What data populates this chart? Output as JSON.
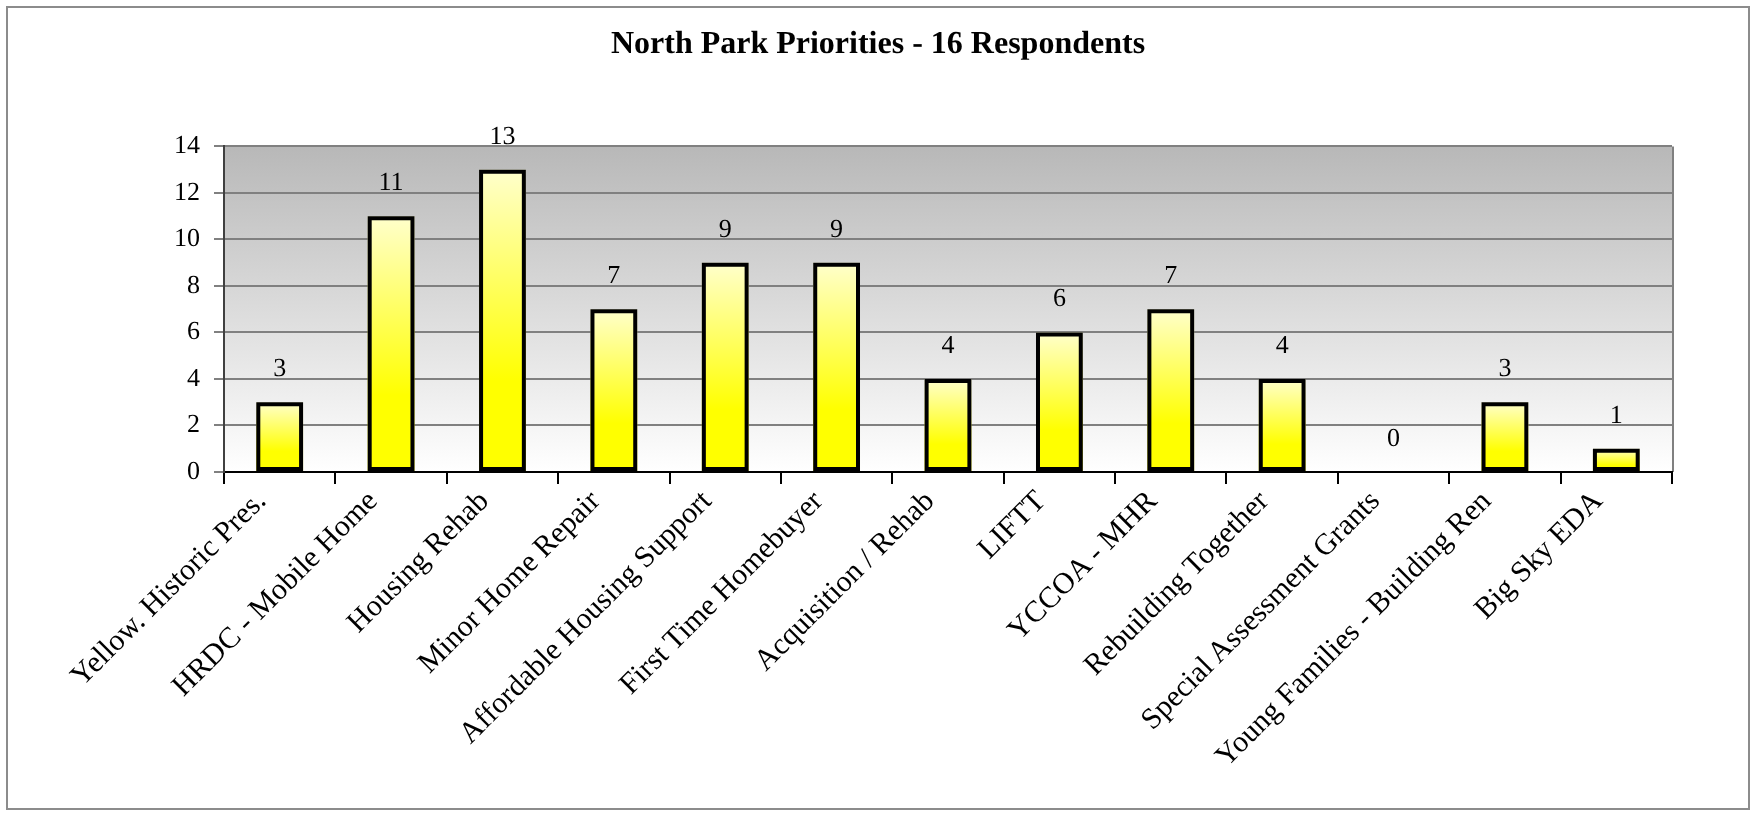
{
  "chart_data": {
    "type": "bar",
    "title": "North Park Priorities - 16 Respondents",
    "categories": [
      "Yellow. Historic Pres.",
      "HRDC - Mobile Home",
      "Housing Rehab",
      "Minor Home Repair",
      "Affordable Housing Support",
      "First Time Homebuyer",
      "Acquisition / Rehab",
      "LIFTT",
      "YCCOA - MHR",
      "Rebuilding Together",
      "Special Assessment Grants",
      "Young Families - Building Ren",
      "Big Sky EDA"
    ],
    "values": [
      3,
      11,
      13,
      7,
      9,
      9,
      4,
      6,
      7,
      4,
      0,
      3,
      1
    ],
    "color": "#ffff00",
    "ylim": [
      0,
      14
    ],
    "yticks": [
      0,
      2,
      4,
      6,
      8,
      10,
      12,
      14
    ],
    "grid": "y",
    "data_labels": true
  }
}
